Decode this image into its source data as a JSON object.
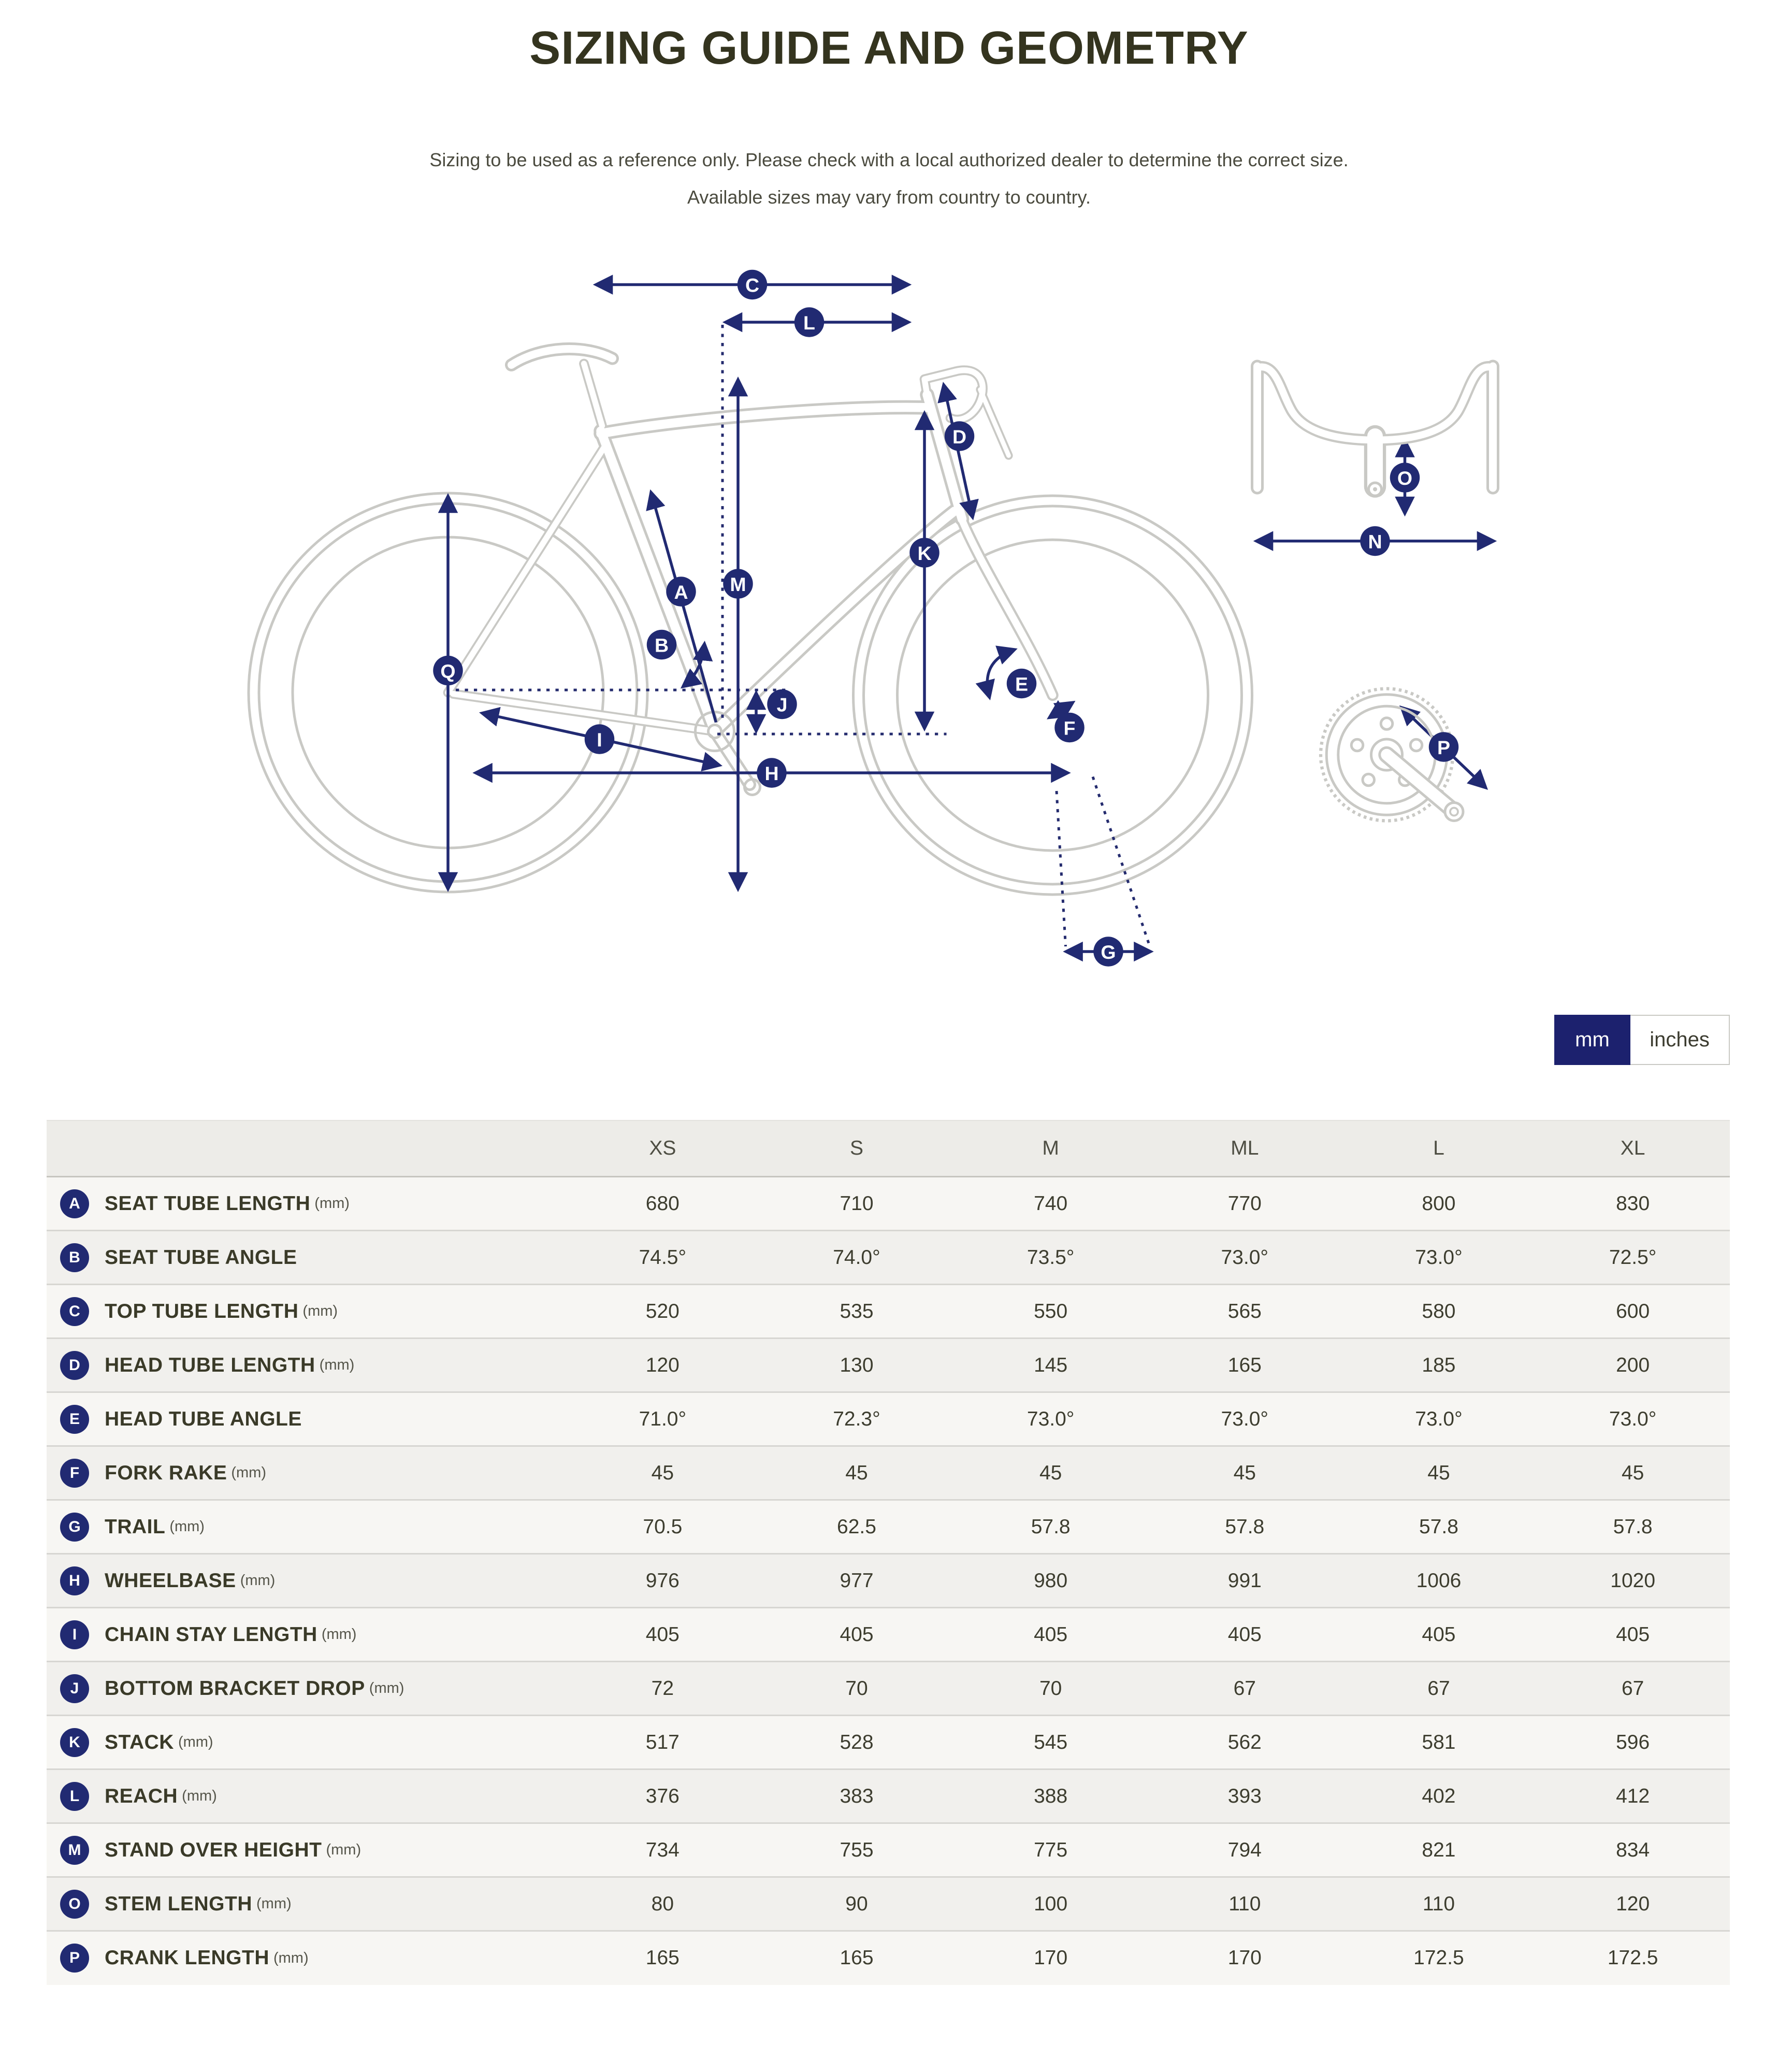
{
  "page": {
    "title": "SIZING GUIDE AND GEOMETRY",
    "subtitle_line1": "Sizing to be used as a reference only. Please check with a local authorized dealer to determine the correct size.",
    "subtitle_line2": "Available sizes may vary from country to country."
  },
  "units_toggle": {
    "mm_label": "mm",
    "inches_label": "inches",
    "selected": "mm"
  },
  "diagram": {
    "badges": {
      "a": "A",
      "b": "B",
      "c": "C",
      "d": "D",
      "e": "E",
      "f": "F",
      "g": "G",
      "h": "H",
      "i": "I",
      "j": "J",
      "k": "K",
      "l": "L",
      "m": "M",
      "n": "N",
      "o": "O",
      "p": "P",
      "q": "Q"
    }
  },
  "table": {
    "size_columns": [
      "XS",
      "S",
      "M",
      "ML",
      "L",
      "XL"
    ],
    "rows": [
      {
        "letter": "A",
        "label": "SEAT TUBE LENGTH",
        "unit": "(mm)",
        "values": [
          "680",
          "710",
          "740",
          "770",
          "800",
          "830"
        ]
      },
      {
        "letter": "B",
        "label": "SEAT TUBE ANGLE",
        "unit": "",
        "values": [
          "74.5°",
          "74.0°",
          "73.5°",
          "73.0°",
          "73.0°",
          "72.5°"
        ]
      },
      {
        "letter": "C",
        "label": "TOP TUBE LENGTH",
        "unit": "(mm)",
        "values": [
          "520",
          "535",
          "550",
          "565",
          "580",
          "600"
        ]
      },
      {
        "letter": "D",
        "label": "HEAD TUBE LENGTH",
        "unit": "(mm)",
        "values": [
          "120",
          "130",
          "145",
          "165",
          "185",
          "200"
        ]
      },
      {
        "letter": "E",
        "label": "HEAD TUBE ANGLE",
        "unit": "",
        "values": [
          "71.0°",
          "72.3°",
          "73.0°",
          "73.0°",
          "73.0°",
          "73.0°"
        ]
      },
      {
        "letter": "F",
        "label": "FORK RAKE",
        "unit": "(mm)",
        "values": [
          "45",
          "45",
          "45",
          "45",
          "45",
          "45"
        ]
      },
      {
        "letter": "G",
        "label": "TRAIL",
        "unit": "(mm)",
        "values": [
          "70.5",
          "62.5",
          "57.8",
          "57.8",
          "57.8",
          "57.8"
        ]
      },
      {
        "letter": "H",
        "label": "WHEELBASE",
        "unit": "(mm)",
        "values": [
          "976",
          "977",
          "980",
          "991",
          "1006",
          "1020"
        ]
      },
      {
        "letter": "I",
        "label": "CHAIN STAY LENGTH",
        "unit": "(mm)",
        "values": [
          "405",
          "405",
          "405",
          "405",
          "405",
          "405"
        ]
      },
      {
        "letter": "J",
        "label": "BOTTOM BRACKET DROP",
        "unit": "(mm)",
        "values": [
          "72",
          "70",
          "70",
          "67",
          "67",
          "67"
        ]
      },
      {
        "letter": "K",
        "label": "STACK",
        "unit": "(mm)",
        "values": [
          "517",
          "528",
          "545",
          "562",
          "581",
          "596"
        ]
      },
      {
        "letter": "L",
        "label": "REACH",
        "unit": "(mm)",
        "values": [
          "376",
          "383",
          "388",
          "393",
          "402",
          "412"
        ]
      },
      {
        "letter": "M",
        "label": "STAND OVER HEIGHT",
        "unit": "(mm)",
        "values": [
          "734",
          "755",
          "775",
          "794",
          "821",
          "834"
        ]
      },
      {
        "letter": "O",
        "label": "STEM LENGTH",
        "unit": "(mm)",
        "values": [
          "80",
          "90",
          "100",
          "110",
          "110",
          "120"
        ]
      },
      {
        "letter": "P",
        "label": "CRANK LENGTH",
        "unit": "(mm)",
        "values": [
          "165",
          "165",
          "170",
          "170",
          "172.5",
          "172.5"
        ]
      }
    ]
  },
  "colors": {
    "accent_navy": "#212a72",
    "button_navy": "#1c216e",
    "title_olive": "#34341f",
    "line_gray": "#c9c9c5",
    "row_light": "#f7f6f3",
    "row_dark": "#f1f0ed",
    "header_bg": "#edece8"
  }
}
